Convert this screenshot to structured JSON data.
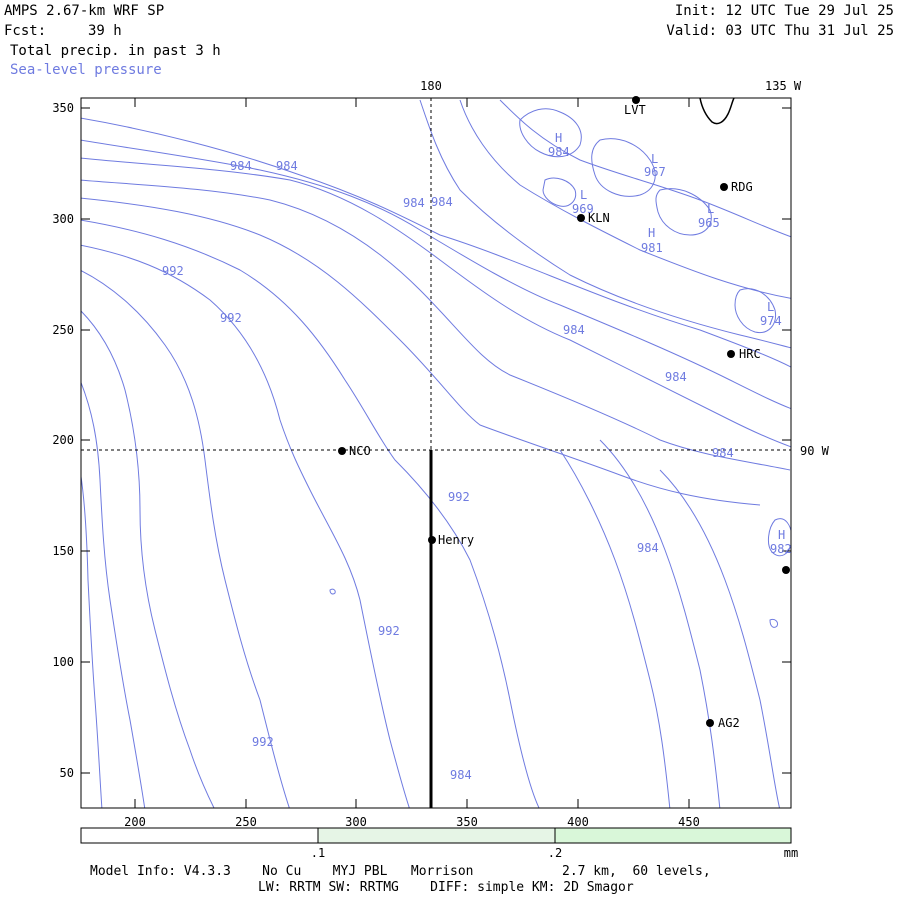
{
  "header": {
    "model": "AMPS 2.67-km WRF SP",
    "fcst_label": "Fcst:",
    "fcst_value": "39 h",
    "field1": "Total precip. in past 3 h",
    "field2": "Sea-level pressure",
    "init": "Init: 12 UTC Tue 29 Jul 25",
    "valid": "Valid: 03 UTC Thu 31 Jul 25"
  },
  "axes": {
    "y_ticks": [
      "350",
      "300",
      "250",
      "200",
      "150",
      "100",
      "50"
    ],
    "x_ticks": [
      "200",
      "250",
      "300",
      "350",
      "400",
      "450"
    ],
    "lon_180": "180",
    "lon_135w": "135 W",
    "lon_90w": "90 W"
  },
  "stations": [
    {
      "name": "LVT"
    },
    {
      "name": "RDG"
    },
    {
      "name": "KLN"
    },
    {
      "name": "HRC"
    },
    {
      "name": "NCO"
    },
    {
      "name": "Henry"
    },
    {
      "name": "AG2"
    },
    {
      "name": ""
    }
  ],
  "contour_labels": [
    "984",
    "984",
    "984",
    "984",
    "969",
    "967",
    "965",
    "981",
    "974",
    "984",
    "984",
    "984",
    "992",
    "992",
    "992",
    "992",
    "992",
    "984",
    "984",
    "984",
    "982"
  ],
  "pressure_marks": [
    "H",
    "L",
    "L",
    "L",
    "H",
    "L",
    "H"
  ],
  "colorbar": {
    "labels": [
      ".1",
      ".2"
    ],
    "unit": "mm",
    "colors": [
      "#ffffff",
      "#e6f5e6",
      "#d9f7d9"
    ]
  },
  "footer": {
    "line1_a": "Model Info: V4.3.3    No Cu    MYJ PBL   Morrison",
    "line1_b": "2.7 km,  60 levels,",
    "line2": "LW: RRTM SW: RRTMG    DIFF: simple KM: 2D Smagor"
  },
  "colors": {
    "contour": "#6f7be0",
    "text": "#000000"
  }
}
